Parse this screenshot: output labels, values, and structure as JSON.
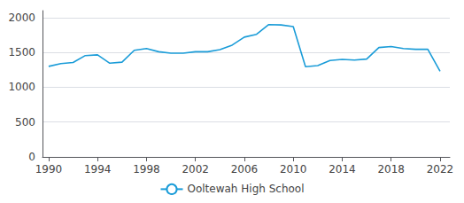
{
  "chart_data": {
    "type": "line",
    "x": [
      1990,
      1991,
      1992,
      1993,
      1994,
      1995,
      1996,
      1997,
      1998,
      1999,
      2000,
      2001,
      2002,
      2003,
      2004,
      2005,
      2006,
      2007,
      2008,
      2009,
      2010,
      2011,
      2012,
      2013,
      2014,
      2015,
      2016,
      2017,
      2018,
      2019,
      2020,
      2021,
      2022
    ],
    "series": [
      {
        "name": "Ooltewah High School",
        "color": "#1a9cd8",
        "values": [
          1300,
          1340,
          1355,
          1455,
          1465,
          1345,
          1360,
          1530,
          1555,
          1510,
          1490,
          1490,
          1510,
          1510,
          1540,
          1605,
          1720,
          1760,
          1900,
          1895,
          1870,
          1295,
          1310,
          1385,
          1400,
          1390,
          1405,
          1570,
          1585,
          1555,
          1545,
          1545,
          1230
        ]
      }
    ],
    "xlim": [
      1989.5,
      2022.8
    ],
    "xticks": [
      1990,
      1994,
      1998,
      2002,
      2006,
      2010,
      2014,
      2018,
      2022
    ],
    "ylim": [
      0,
      2100
    ],
    "yticks": [
      0,
      500,
      1000,
      1500,
      2000
    ],
    "grid": true,
    "legend": "bottom"
  }
}
